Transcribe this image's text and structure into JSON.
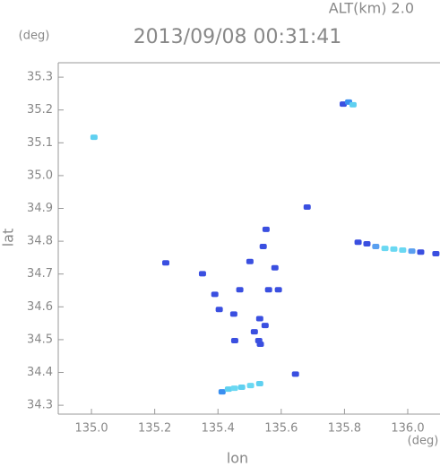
{
  "chart_data": {
    "type": "scatter",
    "title": "2013/09/08 00:31:41",
    "subtitle": "ALT(km) 2.0",
    "x_label": "lon",
    "y_label": "lat",
    "x_unit": "(deg)",
    "y_unit": "(deg)",
    "xlim": [
      134.895,
      136.102
    ],
    "ylim": [
      34.273,
      35.344
    ],
    "xticks": [
      {
        "value": 135,
        "label": "135.0"
      },
      135.2,
      135.4,
      135.6,
      135.8,
      {
        "value": 136,
        "label": "136.0"
      }
    ],
    "yticks": [
      34.3,
      34.4,
      34.5,
      34.6,
      34.7,
      34.8,
      34.9,
      {
        "value": 35,
        "label": "35.0"
      },
      35.1,
      35.2,
      35.3
    ],
    "x": [
      135.796,
      135.813,
      135.827,
      135.008,
      135.682,
      135.843,
      135.871,
      135.899,
      135.928,
      135.956,
      135.984,
      136.013,
      136.041,
      136.089,
      135.552,
      135.543,
      135.501,
      135.235,
      135.351,
      135.39,
      135.404,
      135.469,
      135.45,
      135.532,
      135.515,
      135.529,
      135.534,
      135.549,
      135.56,
      135.58,
      135.591,
      135.453,
      135.645,
      135.413,
      135.433,
      135.452,
      135.475,
      135.503,
      135.532
    ],
    "values": [
      35.218,
      35.224,
      35.216,
      35.117,
      34.904,
      34.797,
      34.792,
      34.784,
      34.778,
      34.776,
      34.773,
      34.77,
      34.767,
      34.762,
      34.836,
      34.784,
      34.738,
      34.734,
      34.701,
      34.638,
      34.592,
      34.652,
      34.578,
      34.564,
      34.524,
      34.497,
      34.486,
      34.543,
      34.652,
      34.719,
      34.652,
      34.497,
      34.395,
      34.341,
      34.349,
      34.352,
      34.355,
      34.36,
      34.366
    ],
    "colors": [
      "#3a4fe0",
      "#3a8ff0",
      "#5fd0f0",
      "#5fd0f0",
      "#3a4fe0",
      "#3a4fe0",
      "#3a4fe0",
      "#5a9ff0",
      "#6ad8f2",
      "#6ad8f2",
      "#6ad8f2",
      "#5a9ff0",
      "#3a4fe0",
      "#3a4fe0",
      "#3a4fe0",
      "#3a4fe0",
      "#3a4fe0",
      "#3a4fe0",
      "#3a4fe0",
      "#3a4fe0",
      "#3a4fe0",
      "#3a4fe0",
      "#3a4fe0",
      "#3a4fe0",
      "#3a4fe0",
      "#3a4fe0",
      "#3a4fe0",
      "#3a4fe0",
      "#3a4fe0",
      "#3a4fe0",
      "#3a4fe0",
      "#3a4fe0",
      "#3a4fe0",
      "#3a8ff0",
      "#5fd0f0",
      "#6ad8f2",
      "#5fd0f0",
      "#6ad8f2",
      "#5fd0f0"
    ]
  }
}
